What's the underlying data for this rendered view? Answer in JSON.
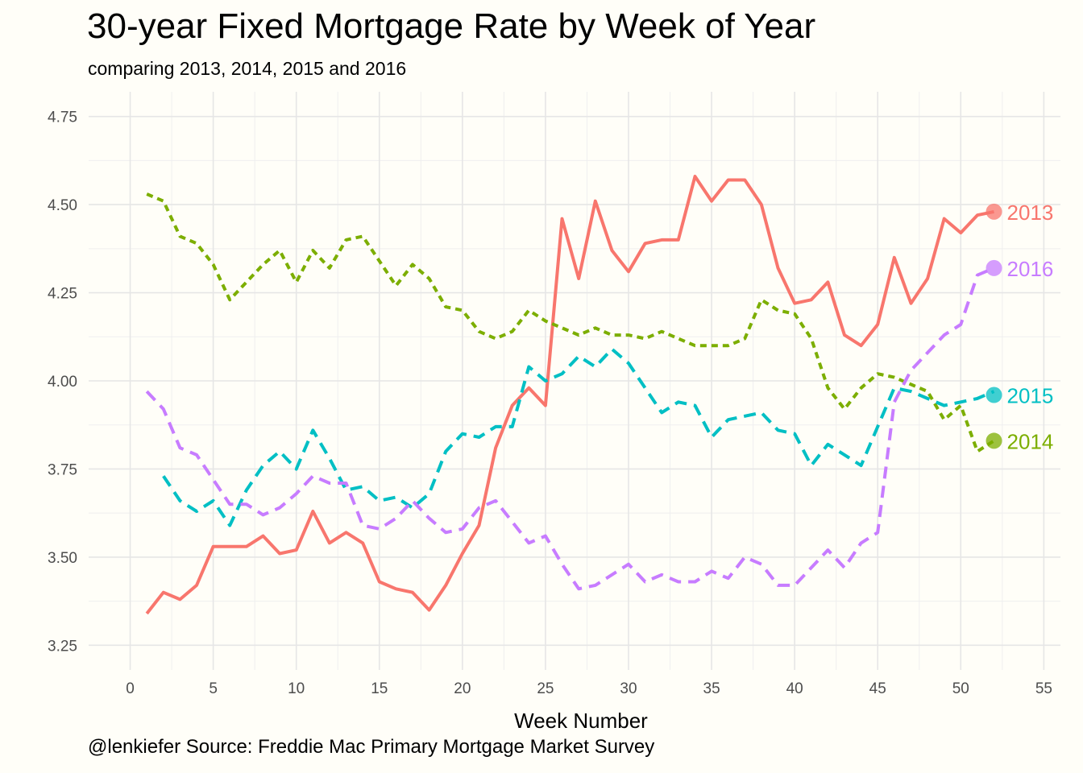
{
  "chart_data": {
    "type": "line",
    "title": "30-year Fixed Mortgage Rate by Week of Year",
    "subtitle": "comparing 2013, 2014, 2015 and 2016",
    "xlabel": "Week Number",
    "ylabel": "",
    "caption": "@lenkiefer Source: Freddie Mac Primary Mortgage Market Survey",
    "xlim": [
      -2.5,
      56
    ],
    "ylim": [
      3.18,
      4.82
    ],
    "xticks": [
      0,
      5,
      10,
      15,
      20,
      25,
      30,
      35,
      40,
      45,
      50,
      55
    ],
    "yticks": [
      3.25,
      3.5,
      3.75,
      4.0,
      4.25,
      4.5,
      4.75
    ],
    "ytick_labels": [
      "3.25",
      "3.50",
      "3.75",
      "4.00",
      "4.25",
      "4.50",
      "4.75"
    ],
    "grid": true,
    "legend": "end-labels",
    "series": [
      {
        "name": "2013",
        "color": "#f8766d",
        "dash": "solid",
        "label_point": {
          "x": 52,
          "y": 4.48
        },
        "x": [
          1,
          2,
          3,
          4,
          5,
          6,
          7,
          8,
          9,
          10,
          11,
          12,
          13,
          14,
          15,
          16,
          17,
          18,
          19,
          20,
          21,
          22,
          23,
          24,
          25,
          26,
          27,
          28,
          29,
          30,
          31,
          32,
          33,
          34,
          35,
          36,
          37,
          38,
          39,
          40,
          41,
          42,
          43,
          44,
          45,
          46,
          47,
          48,
          49,
          50,
          51,
          52
        ],
        "values": [
          3.34,
          3.4,
          3.38,
          3.42,
          3.53,
          3.53,
          3.53,
          3.56,
          3.51,
          3.52,
          3.63,
          3.54,
          3.57,
          3.54,
          3.43,
          3.41,
          3.4,
          3.35,
          3.42,
          3.51,
          3.59,
          3.81,
          3.93,
          3.98,
          3.93,
          4.46,
          4.29,
          4.51,
          4.37,
          4.31,
          4.39,
          4.4,
          4.4,
          4.58,
          4.51,
          4.57,
          4.57,
          4.5,
          4.32,
          4.22,
          4.23,
          4.28,
          4.13,
          4.1,
          4.16,
          4.35,
          4.22,
          4.29,
          4.46,
          4.42,
          4.47,
          4.48
        ]
      },
      {
        "name": "2014",
        "color": "#7cae00",
        "dash": "dotted",
        "label_point": {
          "x": 52,
          "y": 3.83
        },
        "x": [
          1,
          2,
          3,
          4,
          5,
          6,
          7,
          8,
          9,
          10,
          11,
          12,
          13,
          14,
          15,
          16,
          17,
          18,
          19,
          20,
          21,
          22,
          23,
          24,
          25,
          26,
          27,
          28,
          29,
          30,
          31,
          32,
          33,
          34,
          35,
          36,
          37,
          38,
          39,
          40,
          41,
          42,
          43,
          44,
          45,
          46,
          47,
          48,
          49,
          50,
          51,
          52
        ],
        "values": [
          4.53,
          4.51,
          4.41,
          4.39,
          4.33,
          4.23,
          4.28,
          4.33,
          4.37,
          4.28,
          4.37,
          4.32,
          4.4,
          4.41,
          4.34,
          4.27,
          4.33,
          4.29,
          4.21,
          4.2,
          4.14,
          4.12,
          4.14,
          4.2,
          4.17,
          4.15,
          4.13,
          4.15,
          4.13,
          4.13,
          4.12,
          4.14,
          4.12,
          4.1,
          4.1,
          4.1,
          4.12,
          4.23,
          4.2,
          4.19,
          4.12,
          3.98,
          3.92,
          3.98,
          4.02,
          4.01,
          3.99,
          3.97,
          3.89,
          3.93,
          3.8,
          3.83
        ]
      },
      {
        "name": "2015",
        "color": "#00bfc4",
        "dash": "dashed",
        "label_point": {
          "x": 52,
          "y": 3.96
        },
        "x": [
          2,
          3,
          4,
          5,
          6,
          7,
          8,
          9,
          10,
          11,
          12,
          13,
          14,
          15,
          16,
          17,
          18,
          19,
          20,
          21,
          22,
          23,
          24,
          25,
          26,
          27,
          28,
          29,
          30,
          31,
          32,
          33,
          34,
          35,
          36,
          37,
          38,
          39,
          40,
          41,
          42,
          43,
          44,
          45,
          46,
          47,
          48,
          49,
          50,
          51,
          52
        ],
        "values": [
          3.73,
          3.66,
          3.63,
          3.66,
          3.59,
          3.69,
          3.76,
          3.8,
          3.75,
          3.86,
          3.78,
          3.69,
          3.7,
          3.66,
          3.67,
          3.64,
          3.68,
          3.8,
          3.85,
          3.84,
          3.87,
          3.87,
          4.04,
          4.0,
          4.02,
          4.07,
          4.04,
          4.09,
          4.05,
          3.98,
          3.91,
          3.94,
          3.93,
          3.84,
          3.89,
          3.9,
          3.91,
          3.86,
          3.85,
          3.76,
          3.82,
          3.79,
          3.76,
          3.87,
          3.98,
          3.97,
          3.95,
          3.93,
          3.94,
          3.95,
          3.97
        ]
      },
      {
        "name": "2016",
        "color": "#c77cff",
        "dash": "dashed",
        "label_point": {
          "x": 52,
          "y": 4.32
        },
        "x": [
          1,
          2,
          3,
          4,
          5,
          6,
          7,
          8,
          9,
          10,
          11,
          12,
          13,
          14,
          15,
          16,
          17,
          18,
          19,
          20,
          21,
          22,
          23,
          24,
          25,
          26,
          27,
          28,
          29,
          30,
          31,
          32,
          33,
          34,
          35,
          36,
          37,
          38,
          39,
          40,
          41,
          42,
          43,
          44,
          45,
          46,
          47,
          48,
          49,
          50,
          51,
          52
        ],
        "values": [
          3.97,
          3.92,
          3.81,
          3.79,
          3.72,
          3.65,
          3.65,
          3.62,
          3.64,
          3.68,
          3.73,
          3.71,
          3.71,
          3.59,
          3.58,
          3.61,
          3.66,
          3.61,
          3.57,
          3.58,
          3.64,
          3.66,
          3.6,
          3.54,
          3.56,
          3.48,
          3.41,
          3.42,
          3.45,
          3.48,
          3.43,
          3.45,
          3.43,
          3.43,
          3.46,
          3.44,
          3.5,
          3.48,
          3.42,
          3.42,
          3.47,
          3.52,
          3.47,
          3.54,
          3.57,
          3.94,
          4.03,
          4.08,
          4.13,
          4.16,
          4.3,
          4.32
        ]
      }
    ]
  }
}
